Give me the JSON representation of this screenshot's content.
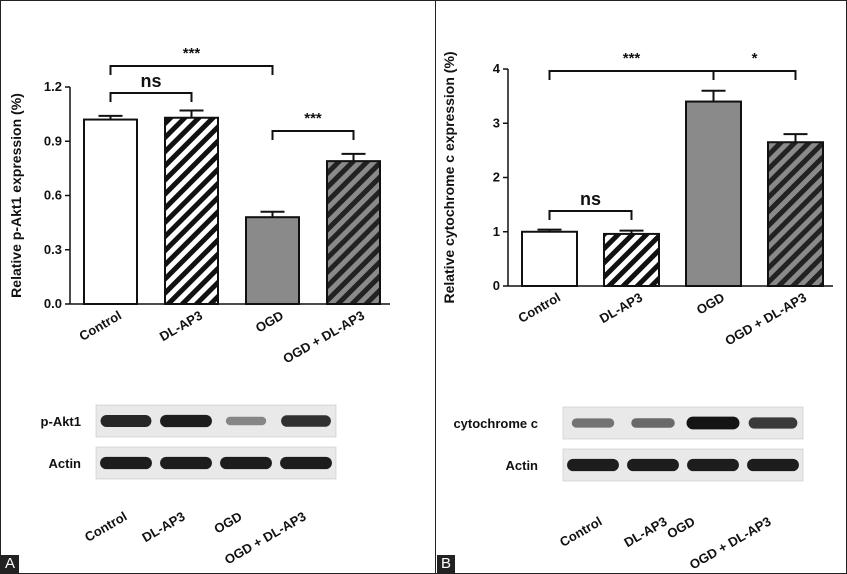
{
  "panels": [
    {
      "label": "A",
      "chart_data": {
        "type": "bar",
        "categories": [
          "Control",
          "DL-AP3",
          "OGD",
          "OGD + DL-AP3"
        ],
        "values": [
          1.02,
          1.03,
          0.48,
          0.79
        ],
        "errors": [
          0.02,
          0.04,
          0.03,
          0.04
        ],
        "fills": [
          "white",
          "hatch",
          "gray",
          "gray-hatch"
        ],
        "ylabel": "Relative p-Akt1 expression (%)",
        "ylim": [
          0,
          1.2
        ],
        "yticks": [
          "0.0",
          "0.3",
          "0.6",
          "0.9",
          "1.2"
        ],
        "significance": [
          {
            "from": 0,
            "to": 1,
            "label": "ns"
          },
          {
            "from": 0,
            "to": 2,
            "label": "***"
          },
          {
            "from": 2,
            "to": 3,
            "label": "***"
          }
        ]
      },
      "blot": {
        "rows": [
          {
            "label": "p-Akt1",
            "intensities": [
              0.85,
              0.9,
              0.35,
              0.8
            ]
          },
          {
            "label": "Actin",
            "intensities": [
              0.9,
              0.9,
              0.9,
              0.9
            ]
          }
        ],
        "lanes": [
          "Control",
          "DL-AP3",
          "OGD",
          "OGD + DL-AP3"
        ]
      }
    },
    {
      "label": "B",
      "chart_data": {
        "type": "bar",
        "categories": [
          "Control",
          "DL-AP3",
          "OGD",
          "OGD + DL-AP3"
        ],
        "values": [
          1.0,
          0.96,
          3.4,
          2.65
        ],
        "errors": [
          0.04,
          0.06,
          0.2,
          0.15
        ],
        "fills": [
          "white",
          "hatch",
          "gray",
          "gray-hatch"
        ],
        "ylabel": "Relative cytochrome c expression (%)",
        "ylim": [
          0,
          4
        ],
        "yticks": [
          "0",
          "1",
          "2",
          "3",
          "4"
        ],
        "significance": [
          {
            "from": 0,
            "to": 1,
            "label": "ns"
          },
          {
            "from": 0,
            "to": 2,
            "label": "***"
          },
          {
            "from": 2,
            "to": 3,
            "label": "*"
          }
        ]
      },
      "blot": {
        "rows": [
          {
            "label": "cytochrome c",
            "intensities": [
              0.45,
              0.5,
              0.95,
              0.75
            ]
          },
          {
            "label": "Actin",
            "intensities": [
              0.9,
              0.9,
              0.9,
              0.9
            ]
          }
        ],
        "lanes": [
          "Control",
          "DL-AP3",
          "OGD",
          "OGD + DL-AP3"
        ]
      }
    }
  ]
}
